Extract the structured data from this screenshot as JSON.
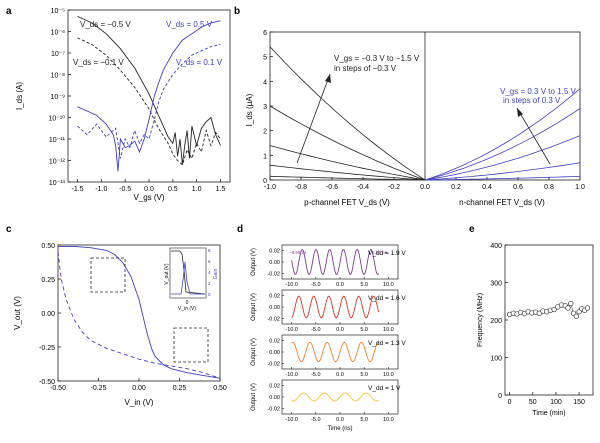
{
  "chart_data": [
    {
      "panel": "a",
      "type": "line",
      "xlabel": "V_gs (V)",
      "ylabel": "I_ds (A)",
      "yscale": "log",
      "xlim": [
        -1.7,
        1.7
      ],
      "ylim_exp": [
        -13,
        -5
      ],
      "xticks": [
        "-1.5",
        "-1.0",
        "-0.5",
        "0.0",
        "0.5",
        "1.0",
        "1.5"
      ],
      "yticks": [
        "10⁻¹³",
        "10⁻¹²",
        "10⁻¹¹",
        "10⁻¹⁰",
        "10⁻⁹",
        "10⁻⁸",
        "10⁻⁷",
        "10⁻⁶",
        "10⁻⁵"
      ],
      "annotations": [
        {
          "text": "V_ds = −0.5 V",
          "color": "#222222"
        },
        {
          "text": "V_ds = 0.5 V",
          "color": "#3f3fc0"
        },
        {
          "text": "V_ds = −0.1 V",
          "color": "#222222"
        },
        {
          "text": "V_ds = 0.1 V",
          "color": "#3f3fc0"
        }
      ],
      "series": [
        {
          "name": "Vds = -0.5 V",
          "color": "#222222",
          "dash": false,
          "x": [
            -1.5,
            -1.2,
            -0.9,
            -0.6,
            -0.3,
            0.0,
            0.2,
            0.4,
            0.5,
            0.55,
            0.6,
            0.65,
            0.7,
            0.75,
            0.8,
            0.85,
            0.9,
            1.0,
            1.1,
            1.2,
            1.3,
            1.4,
            1.5
          ],
          "logy": [
            -5.3,
            -5.6,
            -6.1,
            -6.8,
            -7.7,
            -8.9,
            -9.9,
            -10.9,
            -11.2,
            -10.7,
            -11.8,
            -11.0,
            -12.2,
            -11.3,
            -10.6,
            -11.9,
            -10.4,
            -11.3,
            -10.5,
            -10.2,
            -10.0,
            -10.8,
            -11.3
          ]
        },
        {
          "name": "Vds = -0.1 V",
          "color": "#222222",
          "dash": true,
          "x": [
            -1.5,
            -1.2,
            -0.9,
            -0.6,
            -0.3,
            0.0,
            0.2,
            0.4,
            0.5,
            0.6,
            0.7,
            0.8,
            0.9,
            1.0,
            1.1,
            1.2,
            1.3,
            1.4,
            1.5
          ],
          "logy": [
            -6.3,
            -6.6,
            -7.1,
            -7.8,
            -8.6,
            -9.6,
            -10.5,
            -11.2,
            -11.7,
            -12.0,
            -12.2,
            -11.5,
            -11.9,
            -11.2,
            -11.6,
            -10.6,
            -11.3,
            -10.7,
            -11.0
          ]
        },
        {
          "name": "Vds = 0.5 V",
          "color": "#3f3fc0",
          "dash": false,
          "x": [
            -1.5,
            -1.3,
            -1.1,
            -0.9,
            -0.75,
            -0.7,
            -0.65,
            -0.6,
            -0.5,
            -0.4,
            -0.3,
            -0.2,
            -0.1,
            0.0,
            0.1,
            0.2,
            0.3,
            0.5,
            0.7,
            0.9,
            1.1,
            1.3,
            1.5
          ],
          "logy": [
            -9.5,
            -9.7,
            -9.9,
            -10.3,
            -10.8,
            -11.3,
            -12.5,
            -11.0,
            -11.4,
            -11.3,
            -11.1,
            -11.6,
            -11.0,
            -10.1,
            -9.1,
            -8.4,
            -7.8,
            -7.0,
            -6.4,
            -6.1,
            -5.8,
            -5.6,
            -5.5
          ]
        },
        {
          "name": "Vds = 0.1 V",
          "color": "#3f3fc0",
          "dash": true,
          "x": [
            -1.5,
            -1.3,
            -1.1,
            -0.9,
            -0.7,
            -0.6,
            -0.5,
            -0.4,
            -0.3,
            -0.2,
            -0.1,
            0.0,
            0.1,
            0.2,
            0.3,
            0.5,
            0.7,
            0.9,
            1.1,
            1.3,
            1.5
          ],
          "logy": [
            -10.4,
            -10.8,
            -10.3,
            -10.9,
            -10.5,
            -11.9,
            -11.0,
            -11.4,
            -10.6,
            -11.2,
            -10.8,
            -11.0,
            -10.2,
            -9.3,
            -8.7,
            -8.0,
            -7.5,
            -7.1,
            -6.9,
            -6.7,
            -6.6
          ]
        }
      ]
    },
    {
      "panel": "b",
      "type": "line",
      "xlabel_left": "p-channel FET V_ds (V)",
      "xlabel_right": "n-channel FET V_ds (V)",
      "ylabel": "I_ds (μA)",
      "ylim": [
        0,
        6
      ],
      "left_xticks": [
        "-1.0",
        "-0.8",
        "-0.6",
        "-0.4",
        "-0.2",
        "0.0"
      ],
      "right_xticks": [
        "0.2",
        "0.4",
        "0.6",
        "0.8",
        "1.0"
      ],
      "yticks": [
        "0",
        "1",
        "2",
        "3",
        "4",
        "5",
        "6"
      ],
      "annotation_p": [
        "V_gs = −0.3 V to −1.5 V",
        "in steps of  −0.3 V"
      ],
      "annotation_n": [
        "V_gs = 0.3 V to 1.5 V",
        "in steps of  0.3 V"
      ],
      "p_channel_endpoints_uA": [
        5.4,
        3.0,
        1.4,
        0.6,
        0.15
      ],
      "n_channel_endpoints_uA": [
        3.7,
        2.9,
        1.8,
        0.7,
        0.15
      ],
      "p_color": "#222222",
      "n_color": "#3f3fc0"
    },
    {
      "panel": "c",
      "type": "line",
      "xlabel": "V_in (V)",
      "ylabel": "V_out (V)",
      "xlim": [
        -0.5,
        0.5
      ],
      "ylim": [
        -0.5,
        0.5
      ],
      "xticks": [
        "-0.50",
        "-0.25",
        "0.00",
        "0.25",
        "0.50"
      ],
      "yticks": [
        "-0.50",
        "-0.25",
        "0.00",
        "0.25",
        "0.50"
      ],
      "series": [
        {
          "name": "V_out solid",
          "color": "#3f3fc0",
          "dash": false,
          "x": [
            -0.5,
            -0.4,
            -0.3,
            -0.2,
            -0.15,
            -0.1,
            -0.05,
            0.0,
            0.02,
            0.05,
            0.08,
            0.1,
            0.15,
            0.2,
            0.3,
            0.4,
            0.5
          ],
          "y": [
            0.49,
            0.49,
            0.48,
            0.46,
            0.43,
            0.37,
            0.27,
            0.1,
            0.0,
            -0.15,
            -0.27,
            -0.32,
            -0.38,
            -0.41,
            -0.44,
            -0.46,
            -0.48
          ]
        },
        {
          "name": "V_out mirrored",
          "color": "#3f3fc0",
          "dash": true,
          "x": [
            -0.5,
            -0.48,
            -0.45,
            -0.4,
            -0.35,
            -0.3,
            -0.25,
            -0.2,
            -0.1,
            0.0,
            0.1,
            0.2,
            0.3,
            0.4,
            0.5
          ],
          "y": [
            0.45,
            0.25,
            0.1,
            -0.05,
            -0.14,
            -0.2,
            -0.23,
            -0.26,
            -0.3,
            -0.34,
            -0.37,
            -0.39,
            -0.41,
            -0.44,
            -0.48
          ]
        }
      ],
      "inset": {
        "xlabel": "V_in (V)",
        "ylabel_left": "V_out (V)",
        "ylabel_right": "Gain",
        "xticks": [
          "0"
        ],
        "right_yticks": [
          "0",
          "2",
          "4",
          "6",
          "8"
        ]
      }
    },
    {
      "panel": "d",
      "type": "line",
      "xlabel": "Time (ns)",
      "ylabel": "Output (V)",
      "xlim": [
        -12,
        12
      ],
      "xticks": [
        "-10.0",
        "-5.0",
        "0.0",
        "5.0",
        "10.0"
      ],
      "yticks": [
        "0.02",
        "0.00",
        "-0.02"
      ],
      "timing_labels": [
        "−8.66 ns",
        "5.53 ns"
      ],
      "traces": [
        {
          "label": "V_dd = 1.9 V",
          "color": "#7a3d8a",
          "amplitude": 0.022,
          "period_ns": 2.84
        },
        {
          "label": "V_dd = 1.6 V",
          "color": "#d9342b",
          "amplitude": 0.019,
          "period_ns": 3.1
        },
        {
          "label": "V_dd = 1.3 V",
          "color": "#f08030",
          "amplitude": 0.017,
          "period_ns": 3.55
        },
        {
          "label": "V_dd = 1 V",
          "color": "#f5c242",
          "amplitude": 0.007,
          "period_ns": 4.3
        }
      ]
    },
    {
      "panel": "e",
      "type": "scatter",
      "xlabel": "Time (min)",
      "ylabel": "Frequency (MHz)",
      "xlim": [
        -10,
        180
      ],
      "ylim": [
        0,
        400
      ],
      "xticks": [
        "0",
        "50",
        "100",
        "150"
      ],
      "yticks": [
        "0",
        "100",
        "200",
        "300",
        "400"
      ],
      "x": [
        0,
        8,
        16,
        24,
        32,
        40,
        48,
        56,
        64,
        72,
        80,
        88,
        96,
        104,
        112,
        120,
        126,
        132,
        138,
        144,
        150,
        156,
        162,
        168
      ],
      "y": [
        215,
        218,
        216,
        220,
        217,
        222,
        219,
        221,
        218,
        224,
        222,
        226,
        228,
        235,
        240,
        238,
        232,
        244,
        218,
        210,
        222,
        230,
        226,
        232
      ]
    }
  ],
  "panel_labels": [
    "a",
    "b",
    "c",
    "d",
    "e"
  ]
}
